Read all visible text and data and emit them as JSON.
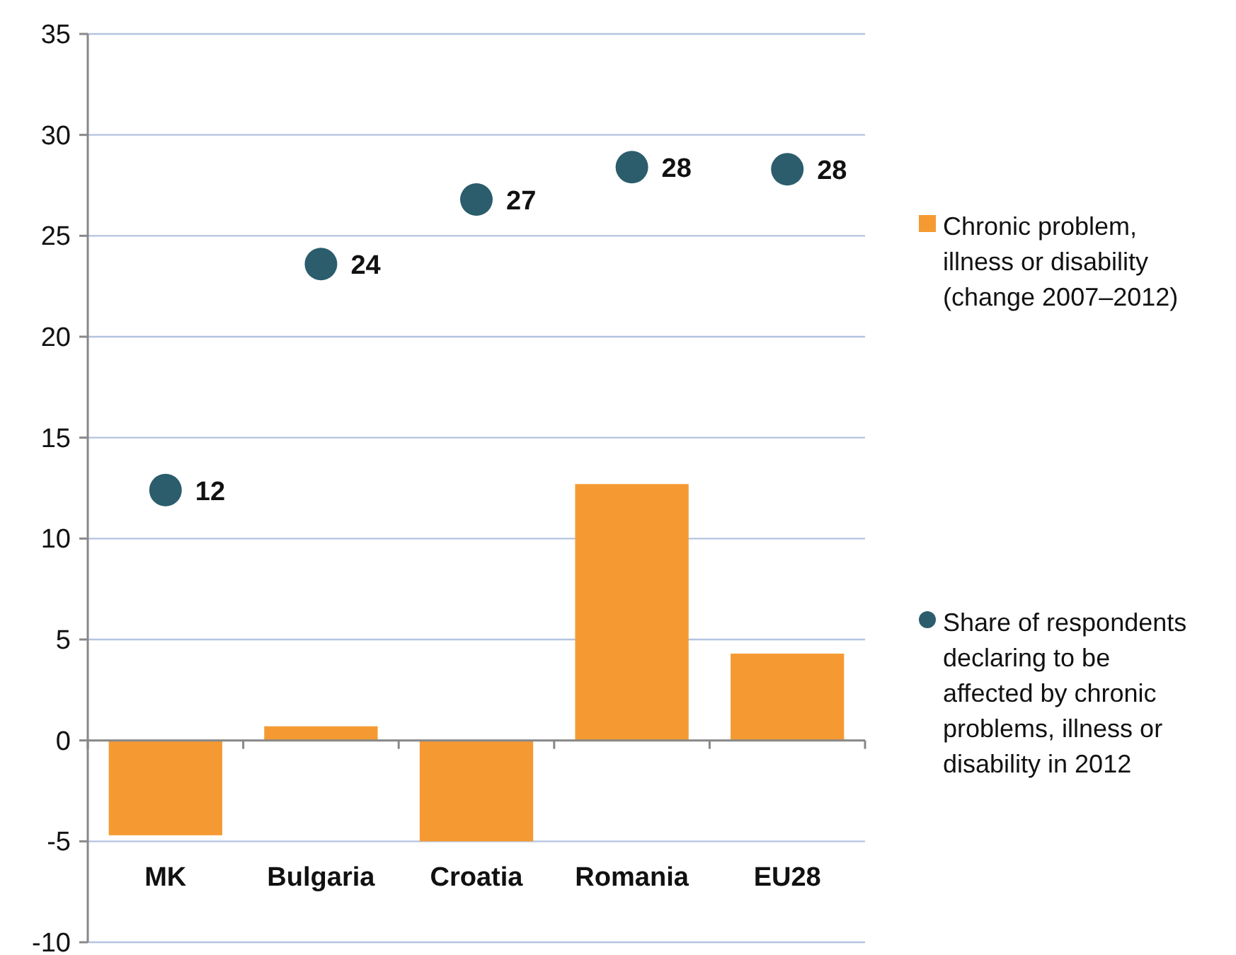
{
  "chart_data": {
    "type": "bar",
    "categories": [
      "MK",
      "Bulgaria",
      "Croatia",
      "Romania",
      "EU28"
    ],
    "series": [
      {
        "name": "Chronic problem, illness or disability (change 2007–2012)",
        "color": "#f59a32",
        "values": [
          -4.7,
          0.7,
          -5.0,
          12.7,
          4.3
        ]
      },
      {
        "type": "scatter",
        "name": "Share of respondents declaring to be affected by chronic problems, illness or disability in 2012",
        "color": "#2b5d6c",
        "x": [
          "MK",
          "Bulgaria",
          "Croatia",
          "Romania",
          "EU28"
        ],
        "values": [
          12.4,
          23.6,
          26.8,
          28.4,
          28.3
        ],
        "value_labels": [
          "12",
          "24",
          "27",
          "28",
          "28"
        ]
      }
    ],
    "ylim": [
      -10,
      35
    ],
    "yticks": [
      -10,
      {
        "value": -5,
        "label": "-5"
      },
      0,
      5,
      10,
      15,
      20,
      25,
      30,
      35
    ],
    "grid": "y",
    "legend": "right",
    "marker": "circle"
  }
}
